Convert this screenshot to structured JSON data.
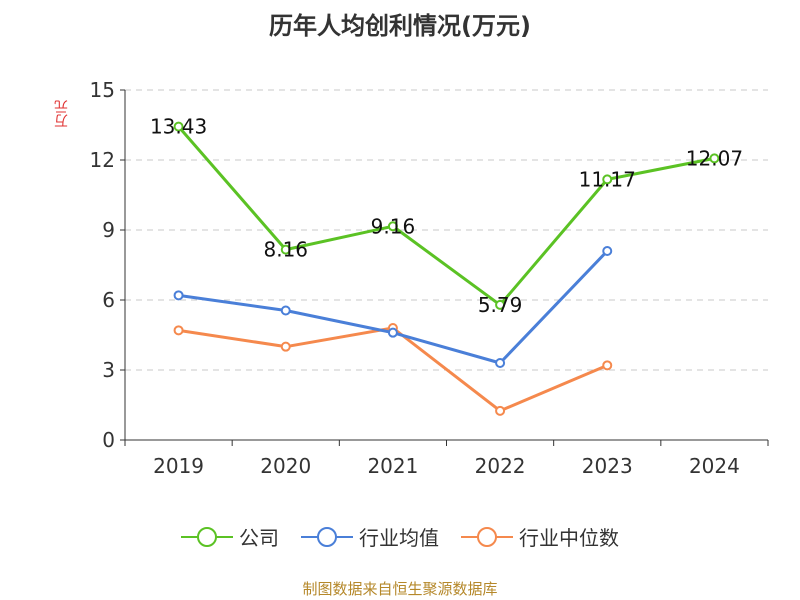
{
  "chart_data": {
    "type": "line",
    "title": "历年人均创利情况(万元)",
    "ylabel": "万元",
    "xlabel": "",
    "ylim": [
      0,
      15
    ],
    "yticks": [
      0,
      3,
      6,
      9,
      12,
      15
    ],
    "categories": [
      "2019",
      "2020",
      "2021",
      "2022",
      "2023",
      "2024"
    ],
    "grid": true,
    "legend_position": "bottom",
    "series": [
      {
        "name": "公司",
        "color": "#5bc224",
        "values": [
          13.43,
          8.16,
          9.16,
          5.79,
          11.17,
          12.07
        ],
        "data_labels": [
          "13.43",
          "8.16",
          "9.16",
          "5.79",
          "11.17",
          "12.07"
        ]
      },
      {
        "name": "行业均值",
        "color": "#4a7fd8",
        "values": [
          6.2,
          5.55,
          4.6,
          3.3,
          8.1,
          null
        ]
      },
      {
        "name": "行业中位数",
        "color": "#f5894d",
        "values": [
          4.7,
          4.0,
          4.8,
          1.25,
          3.2,
          null
        ]
      }
    ]
  },
  "source_text": "制图数据来自恒生聚源数据库"
}
